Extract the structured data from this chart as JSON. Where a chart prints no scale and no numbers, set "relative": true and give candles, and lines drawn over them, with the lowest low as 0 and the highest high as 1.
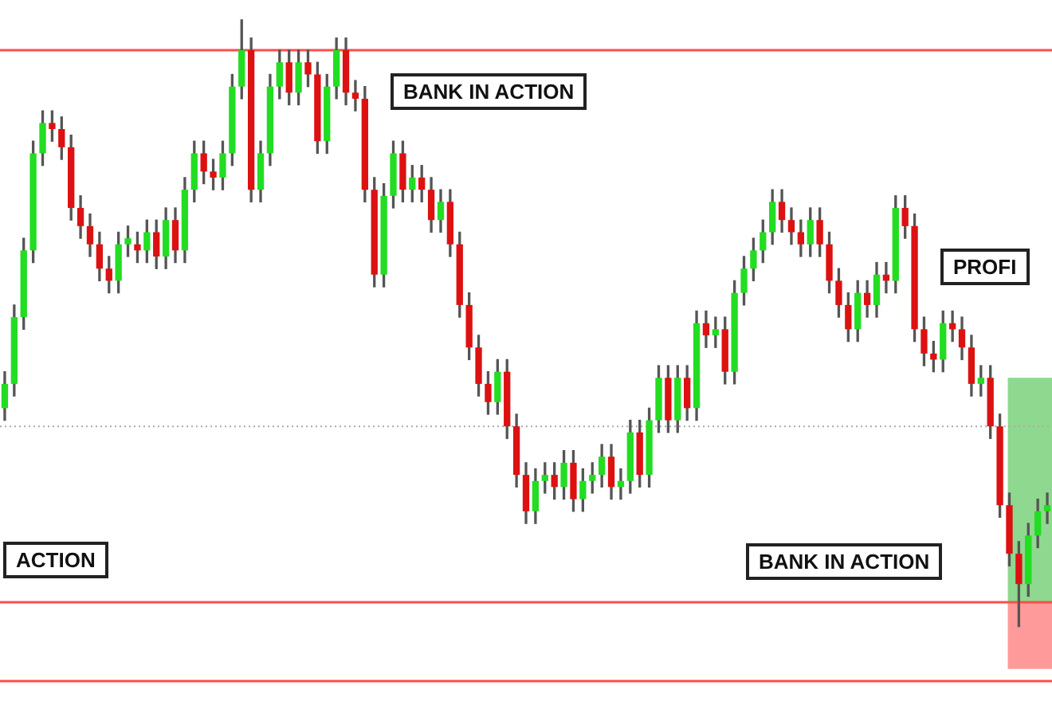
{
  "chart_data": {
    "type": "candlestick",
    "relative": true,
    "categories": [
      null,
      null,
      null,
      null,
      null,
      null,
      null,
      null,
      null,
      null,
      null,
      null,
      null,
      null,
      null,
      null,
      null,
      null,
      null,
      null,
      null,
      null,
      null,
      null,
      null,
      null,
      null,
      null,
      null,
      null,
      null,
      null,
      null,
      null,
      null,
      null,
      null,
      null,
      null,
      null,
      null,
      null,
      null,
      null,
      null,
      null,
      null,
      null,
      null,
      null,
      null,
      null,
      null,
      null,
      null,
      null,
      null,
      null,
      null,
      null,
      null,
      null,
      null,
      null,
      null,
      null,
      null,
      null,
      null,
      null,
      null,
      null,
      null,
      null,
      null,
      null,
      null,
      null,
      null,
      null,
      null,
      null,
      null,
      null,
      null,
      null,
      null,
      null,
      null,
      null,
      null,
      null,
      null,
      null,
      null,
      null,
      null,
      null,
      null,
      null,
      null,
      null,
      null,
      null,
      null,
      null,
      null,
      null,
      null,
      null,
      null
    ],
    "colors": [
      "#22dd22",
      "#22dd22",
      "#22dd22",
      "#22dd22",
      "#22dd22",
      "#dd1111",
      "#dd1111",
      "#dd1111",
      "#dd1111",
      "#dd1111",
      "#dd1111",
      "#dd1111",
      "#22dd22",
      "#22dd22",
      "#dd1111",
      "#22dd22",
      "#dd1111",
      "#22dd22",
      "#dd1111",
      "#22dd22",
      "#22dd22",
      "#dd1111",
      "#dd1111",
      "#22dd22",
      "#22dd22",
      "#22dd22",
      "#dd1111",
      "#22dd22",
      "#22dd22",
      "#22dd22",
      "#dd1111",
      "#22dd22",
      "#dd1111",
      "#dd1111",
      "#22dd22",
      "#22dd22",
      "#dd1111",
      "#dd1111",
      "#dd1111",
      "#dd1111",
      "#22dd22",
      "#22dd22",
      "#dd1111",
      "#22dd22",
      "#dd1111",
      "#dd1111",
      "#22dd22",
      "#dd1111",
      "#dd1111",
      "#dd1111",
      "#dd1111",
      "#dd1111",
      "#22dd22",
      "#dd1111",
      "#dd1111",
      "#dd1111",
      "#22dd22",
      "#22dd22",
      "#dd1111",
      "#22dd22",
      "#dd1111",
      "#22dd22",
      "#22dd22",
      "#22dd22",
      "#dd1111",
      "#22dd22",
      "#22dd22",
      "#dd1111",
      "#22dd22",
      "#22dd22",
      "#dd1111",
      "#22dd22",
      "#dd1111",
      "#22dd22",
      "#dd1111",
      "#22dd22",
      "#dd1111",
      "#22dd22",
      "#22dd22",
      "#22dd22",
      "#22dd22",
      "#22dd22",
      "#dd1111",
      "#dd1111",
      "#dd1111",
      "#22dd22",
      "#dd1111",
      "#dd1111",
      "#dd1111",
      "#dd1111",
      "#22dd22",
      "#dd1111",
      "#22dd22",
      "#dd1111",
      "#22dd22",
      "#dd1111",
      "#dd1111",
      "#dd1111",
      "#dd1111",
      "#22dd22",
      "#dd1111",
      "#dd1111",
      "#dd1111",
      "#22dd22",
      "#dd1111",
      "#dd1111",
      "#dd1111",
      "#dd1111",
      "#22dd22",
      "#22dd22",
      "#22dd22"
    ],
    "ohlc": [
      [
        0.36,
        0.42,
        0.34,
        0.4
      ],
      [
        0.4,
        0.53,
        0.38,
        0.51
      ],
      [
        0.51,
        0.64,
        0.49,
        0.62
      ],
      [
        0.62,
        0.8,
        0.6,
        0.78
      ],
      [
        0.78,
        0.85,
        0.76,
        0.83
      ],
      [
        0.83,
        0.85,
        0.8,
        0.82
      ],
      [
        0.82,
        0.84,
        0.77,
        0.79
      ],
      [
        0.79,
        0.81,
        0.67,
        0.69
      ],
      [
        0.69,
        0.71,
        0.64,
        0.66
      ],
      [
        0.66,
        0.68,
        0.61,
        0.63
      ],
      [
        0.63,
        0.65,
        0.57,
        0.59
      ],
      [
        0.59,
        0.61,
        0.55,
        0.57
      ],
      [
        0.57,
        0.65,
        0.55,
        0.63
      ],
      [
        0.63,
        0.66,
        0.61,
        0.64
      ],
      [
        0.63,
        0.65,
        0.6,
        0.62
      ],
      [
        0.62,
        0.67,
        0.6,
        0.65
      ],
      [
        0.65,
        0.67,
        0.59,
        0.61
      ],
      [
        0.61,
        0.69,
        0.59,
        0.67
      ],
      [
        0.67,
        0.69,
        0.6,
        0.62
      ],
      [
        0.62,
        0.74,
        0.6,
        0.72
      ],
      [
        0.72,
        0.8,
        0.7,
        0.78
      ],
      [
        0.78,
        0.8,
        0.73,
        0.75
      ],
      [
        0.75,
        0.77,
        0.72,
        0.74
      ],
      [
        0.74,
        0.8,
        0.72,
        0.78
      ],
      [
        0.78,
        0.91,
        0.76,
        0.89
      ],
      [
        0.89,
        1.0,
        0.87,
        0.95
      ],
      [
        0.95,
        0.97,
        0.7,
        0.72
      ],
      [
        0.72,
        0.8,
        0.7,
        0.78
      ],
      [
        0.78,
        0.91,
        0.76,
        0.89
      ],
      [
        0.89,
        0.95,
        0.87,
        0.93
      ],
      [
        0.93,
        0.95,
        0.86,
        0.88
      ],
      [
        0.88,
        0.95,
        0.86,
        0.93
      ],
      [
        0.93,
        0.95,
        0.89,
        0.91
      ],
      [
        0.91,
        0.93,
        0.78,
        0.8
      ],
      [
        0.8,
        0.91,
        0.78,
        0.89
      ],
      [
        0.89,
        0.97,
        0.87,
        0.95
      ],
      [
        0.95,
        0.97,
        0.86,
        0.88
      ],
      [
        0.88,
        0.9,
        0.85,
        0.87
      ],
      [
        0.87,
        0.89,
        0.7,
        0.72
      ],
      [
        0.72,
        0.74,
        0.56,
        0.58
      ],
      [
        0.58,
        0.73,
        0.56,
        0.71
      ],
      [
        0.71,
        0.8,
        0.69,
        0.78
      ],
      [
        0.78,
        0.8,
        0.7,
        0.72
      ],
      [
        0.72,
        0.76,
        0.7,
        0.74
      ],
      [
        0.74,
        0.76,
        0.7,
        0.72
      ],
      [
        0.72,
        0.74,
        0.65,
        0.67
      ],
      [
        0.67,
        0.72,
        0.65,
        0.7
      ],
      [
        0.7,
        0.72,
        0.61,
        0.63
      ],
      [
        0.63,
        0.65,
        0.51,
        0.53
      ],
      [
        0.53,
        0.55,
        0.44,
        0.46
      ],
      [
        0.46,
        0.48,
        0.38,
        0.4
      ],
      [
        0.4,
        0.42,
        0.35,
        0.37
      ],
      [
        0.37,
        0.44,
        0.35,
        0.42
      ],
      [
        0.42,
        0.44,
        0.31,
        0.33
      ],
      [
        0.33,
        0.35,
        0.23,
        0.25
      ],
      [
        0.25,
        0.27,
        0.17,
        0.19
      ],
      [
        0.19,
        0.26,
        0.17,
        0.24
      ],
      [
        0.24,
        0.27,
        0.22,
        0.25
      ],
      [
        0.25,
        0.27,
        0.21,
        0.23
      ],
      [
        0.23,
        0.29,
        0.21,
        0.27
      ],
      [
        0.27,
        0.29,
        0.19,
        0.21
      ],
      [
        0.21,
        0.26,
        0.19,
        0.24
      ],
      [
        0.24,
        0.27,
        0.22,
        0.25
      ],
      [
        0.25,
        0.3,
        0.23,
        0.28
      ],
      [
        0.28,
        0.3,
        0.21,
        0.23
      ],
      [
        0.23,
        0.26,
        0.21,
        0.24
      ],
      [
        0.24,
        0.34,
        0.22,
        0.32
      ],
      [
        0.32,
        0.34,
        0.23,
        0.25
      ],
      [
        0.25,
        0.36,
        0.23,
        0.34
      ],
      [
        0.34,
        0.43,
        0.32,
        0.41
      ],
      [
        0.41,
        0.43,
        0.32,
        0.34
      ],
      [
        0.34,
        0.43,
        0.32,
        0.41
      ],
      [
        0.41,
        0.43,
        0.34,
        0.36
      ],
      [
        0.36,
        0.52,
        0.34,
        0.5
      ],
      [
        0.5,
        0.52,
        0.46,
        0.48
      ],
      [
        0.48,
        0.51,
        0.46,
        0.49
      ],
      [
        0.49,
        0.51,
        0.4,
        0.42
      ],
      [
        0.42,
        0.57,
        0.4,
        0.55
      ],
      [
        0.55,
        0.61,
        0.53,
        0.59
      ],
      [
        0.59,
        0.64,
        0.57,
        0.62
      ],
      [
        0.62,
        0.67,
        0.6,
        0.65
      ],
      [
        0.65,
        0.72,
        0.63,
        0.7
      ],
      [
        0.7,
        0.72,
        0.65,
        0.67
      ],
      [
        0.67,
        0.69,
        0.63,
        0.65
      ],
      [
        0.65,
        0.67,
        0.61,
        0.63
      ],
      [
        0.63,
        0.69,
        0.61,
        0.67
      ],
      [
        0.67,
        0.69,
        0.61,
        0.63
      ],
      [
        0.63,
        0.65,
        0.55,
        0.57
      ],
      [
        0.57,
        0.59,
        0.51,
        0.53
      ],
      [
        0.53,
        0.55,
        0.47,
        0.49
      ],
      [
        0.49,
        0.57,
        0.47,
        0.55
      ],
      [
        0.55,
        0.57,
        0.51,
        0.53
      ],
      [
        0.53,
        0.6,
        0.51,
        0.58
      ],
      [
        0.58,
        0.6,
        0.55,
        0.57
      ],
      [
        0.57,
        0.71,
        0.55,
        0.69
      ],
      [
        0.69,
        0.71,
        0.64,
        0.66
      ],
      [
        0.66,
        0.68,
        0.47,
        0.49
      ],
      [
        0.49,
        0.51,
        0.43,
        0.45
      ],
      [
        0.45,
        0.47,
        0.42,
        0.44
      ],
      [
        0.44,
        0.52,
        0.42,
        0.5
      ],
      [
        0.5,
        0.52,
        0.47,
        0.49
      ],
      [
        0.49,
        0.51,
        0.44,
        0.46
      ],
      [
        0.46,
        0.48,
        0.38,
        0.4
      ],
      [
        0.4,
        0.43,
        0.38,
        0.41
      ],
      [
        0.41,
        0.43,
        0.31,
        0.33
      ],
      [
        0.33,
        0.35,
        0.18,
        0.2
      ],
      [
        0.2,
        0.22,
        0.1,
        0.12
      ],
      [
        0.12,
        0.14,
        0.0,
        0.07
      ],
      [
        0.07,
        0.17,
        0.05,
        0.15
      ],
      [
        0.15,
        0.21,
        0.13,
        0.19
      ],
      [
        0.19,
        0.22,
        0.17,
        0.2
      ]
    ],
    "ref_lines": [
      {
        "axis": "y",
        "value": 0.95,
        "color": "#ff4d4d"
      },
      {
        "axis": "y",
        "value": 0.04,
        "color": "#ff4d4d"
      },
      {
        "axis": "y",
        "value": -0.09,
        "color": "#ff4d4d"
      },
      {
        "axis": "y",
        "value": 0.33,
        "color": "#aaaaaa",
        "line_style": "dotted"
      }
    ],
    "bands": [
      {
        "axis": "y",
        "from": 0.04,
        "to": 0.41,
        "color": "#8fd88f"
      },
      {
        "axis": "y",
        "from": -0.07,
        "to": 0.04,
        "color": "#ff9a9a"
      }
    ],
    "annotations": [
      "BANK IN ACTION",
      "ACTION",
      "BANK IN ACTION",
      "PROFI"
    ],
    "legend": false,
    "tick_labels": false
  }
}
